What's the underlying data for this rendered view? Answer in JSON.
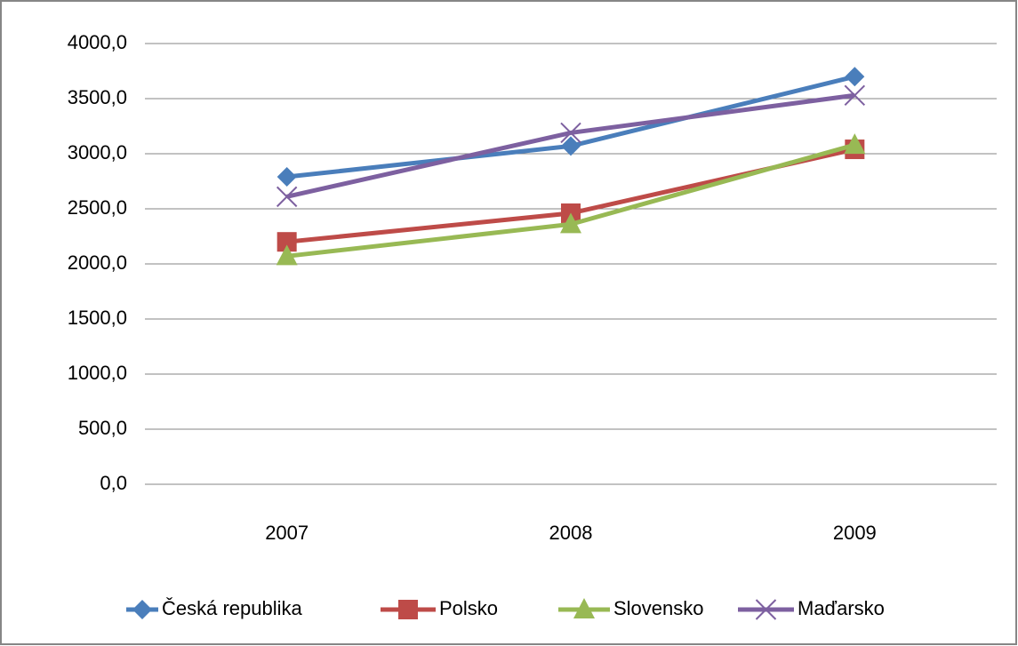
{
  "chart_data": {
    "type": "line",
    "categories": [
      "2007",
      "2008",
      "2009"
    ],
    "series": [
      {
        "name": "Česká republika",
        "color": "#4a7ebb",
        "marker": "diamond",
        "values": [
          2790,
          3070,
          3700
        ]
      },
      {
        "name": "Polsko",
        "color": "#be4b48",
        "marker": "square",
        "values": [
          2200,
          2460,
          3040
        ]
      },
      {
        "name": "Slovensko",
        "color": "#98b954",
        "marker": "triangle",
        "values": [
          2070,
          2360,
          3080
        ]
      },
      {
        "name": "Maďarsko",
        "color": "#7d60a0",
        "marker": "x",
        "values": [
          2610,
          3190,
          3530
        ]
      }
    ],
    "ylim": [
      0,
      4000
    ],
    "yticks": [
      {
        "value": 0,
        "label": "0,0"
      },
      {
        "value": 500,
        "label": "500,0"
      },
      {
        "value": 1000,
        "label": "1000,0"
      },
      {
        "value": 1500,
        "label": "1500,0"
      },
      {
        "value": 2000,
        "label": "2000,0"
      },
      {
        "value": 2500,
        "label": "2500,0"
      },
      {
        "value": 3000,
        "label": "3000,0"
      },
      {
        "value": 3500,
        "label": "3500,0"
      },
      {
        "value": 4000,
        "label": "4000,0"
      }
    ],
    "grid": true,
    "legend": "bottom"
  }
}
